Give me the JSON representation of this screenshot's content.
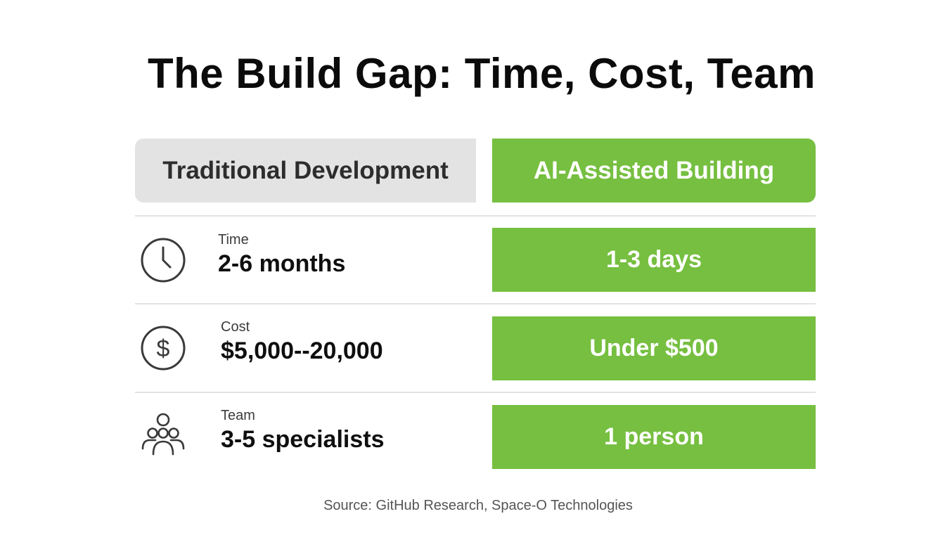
{
  "title": "The Build Gap: Time, Cost, Team",
  "headers": {
    "left": "Traditional Development",
    "right": "AI-Assisted Building"
  },
  "rows": [
    {
      "icon": "clock-icon",
      "label": "Time",
      "traditional": "2-6 months",
      "ai": "1-3 days"
    },
    {
      "icon": "dollar-icon",
      "label": "Cost",
      "traditional": "$5,000--20,000",
      "ai": "Under $500"
    },
    {
      "icon": "people-icon",
      "label": "Team",
      "traditional": "3-5 specialists",
      "ai": "1 person"
    }
  ],
  "source": "Source: GitHub Research, Space-O Technologies",
  "colors": {
    "accent_green": "#76bf40",
    "header_gray": "#e3e3e3",
    "divider": "#e2e2e2",
    "icon_stroke": "#3a3a3a"
  }
}
